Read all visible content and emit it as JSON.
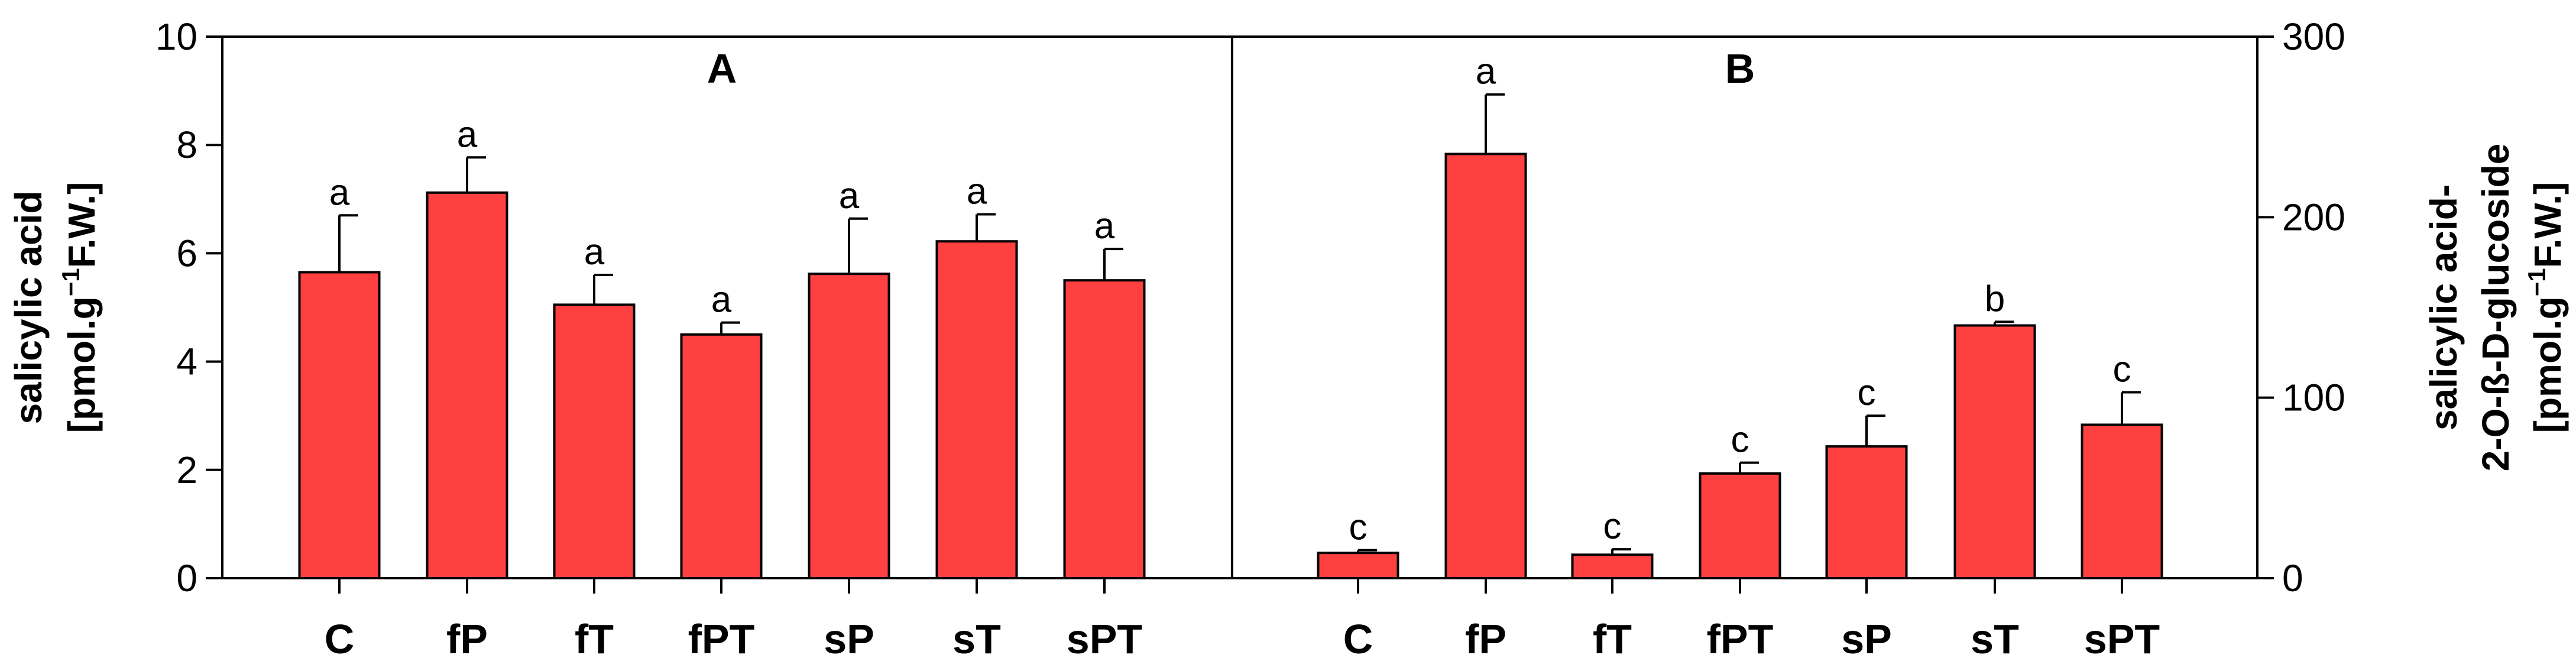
{
  "chart_data": [
    {
      "panel": "A",
      "type": "bar",
      "title": "A",
      "ylabel_line1": "salicylic acid",
      "ylabel_line2_pre": "[pmol.g",
      "ylabel_line2_sup": "−1",
      "ylabel_line2_post": "F.W.]",
      "ylim": [
        0,
        10
      ],
      "yticks": [
        0,
        2,
        4,
        6,
        8,
        10
      ],
      "categories": [
        "C",
        "fP",
        "fT",
        "fPT",
        "sP",
        "sT",
        "sPT"
      ],
      "values": [
        5.65,
        7.12,
        5.05,
        4.5,
        5.62,
        6.22,
        5.5
      ],
      "errors": [
        1.05,
        0.65,
        0.55,
        0.22,
        1.02,
        0.5,
        0.58
      ],
      "letters": [
        "a",
        "a",
        "a",
        "a",
        "a",
        "a",
        "a"
      ],
      "bar_color": "#ff4040"
    },
    {
      "panel": "B",
      "type": "bar",
      "title": "B",
      "ylabel_line1": "salicylic acid-",
      "ylabel_line2": "2-O-ß-D-glucoside",
      "ylabel_line3_pre": "[pmol.g",
      "ylabel_line3_sup": "−1",
      "ylabel_line3_post": "F.W.]",
      "ylim": [
        0,
        300
      ],
      "yticks": [
        0,
        100,
        200,
        300
      ],
      "categories": [
        "C",
        "fP",
        "fT",
        "fPT",
        "sP",
        "sT",
        "sPT"
      ],
      "values": [
        14,
        235,
        13,
        58,
        73,
        140,
        85
      ],
      "errors": [
        1.5,
        33,
        3,
        6,
        17,
        2,
        18
      ],
      "letters": [
        "c",
        "a",
        "c",
        "c",
        "c",
        "b",
        "c"
      ],
      "bar_color": "#ff4040"
    }
  ]
}
